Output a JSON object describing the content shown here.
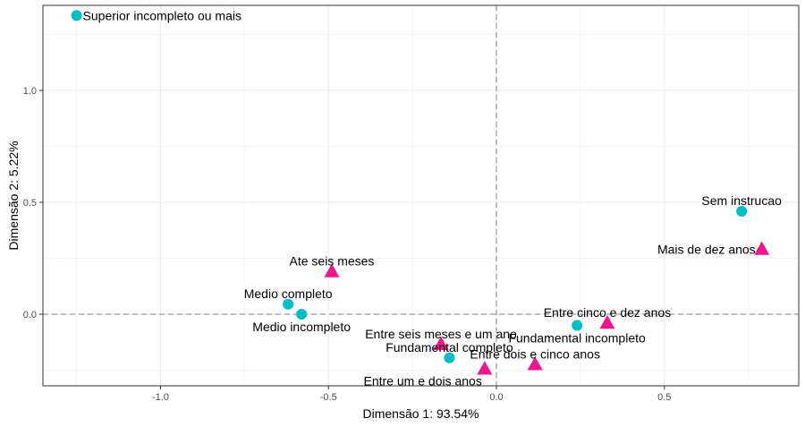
{
  "chart_data": {
    "type": "scatter",
    "title": "",
    "xlabel": "Dimensão 1: 93.54%",
    "ylabel": "Dimensão 2: 5.22%",
    "xlim": [
      -1.35,
      0.9
    ],
    "ylim": [
      -0.32,
      1.38
    ],
    "xticks": [
      -1.0,
      -0.5,
      0.0,
      0.5
    ],
    "xtick_labels": [
      "-1.0",
      "-0.5",
      "0.0",
      "0.5"
    ],
    "yticks": [
      0.0,
      0.5,
      1.0
    ],
    "ytick_labels": [
      "0.0",
      "0.5",
      "1.0"
    ],
    "grid": true,
    "reference_lines": {
      "x": 0,
      "y": 0,
      "style": "dashed"
    },
    "legend": "none",
    "colors": {
      "circle": "#00BFC4",
      "triangle": "#F0168C",
      "panel_border": "#333333",
      "grid": "#ebebeb",
      "ref_line": "#7f7f7f"
    },
    "series": [
      {
        "marker": "circle",
        "points": [
          {
            "label": "Superior incompleto ou mais",
            "x": -1.25,
            "y": 1.335,
            "label_pos": "right"
          },
          {
            "label": "Sem instrucao",
            "x": 0.73,
            "y": 0.46,
            "label_pos": "above"
          },
          {
            "label": "Medio completo",
            "x": -0.62,
            "y": 0.045,
            "label_pos": "above"
          },
          {
            "label": "Medio incompleto",
            "x": -0.58,
            "y": 0.0,
            "label_pos": "below"
          },
          {
            "label": "Fundamental incompleto",
            "x": 0.24,
            "y": -0.05,
            "label_pos": "below"
          },
          {
            "label": "Fundamental completo",
            "x": -0.14,
            "y": -0.195,
            "label_pos": "above"
          }
        ]
      },
      {
        "marker": "triangle",
        "points": [
          {
            "label": "Mais de dez anos",
            "x": 0.79,
            "y": 0.29,
            "label_pos": "left"
          },
          {
            "label": "Ate seis meses",
            "x": -0.49,
            "y": 0.19,
            "label_pos": "above"
          },
          {
            "label": "Entre cinco e dez anos",
            "x": 0.33,
            "y": -0.04,
            "label_pos": "above"
          },
          {
            "label": "Entre seis meses e um ano",
            "x": -0.165,
            "y": -0.135,
            "label_pos": "above"
          },
          {
            "label": "Entre dois e cinco anos",
            "x": 0.115,
            "y": -0.225,
            "label_pos": "above"
          },
          {
            "label": "Entre um e dois anos",
            "x": -0.035,
            "y": -0.245,
            "label_pos": "below-left"
          }
        ]
      }
    ]
  }
}
